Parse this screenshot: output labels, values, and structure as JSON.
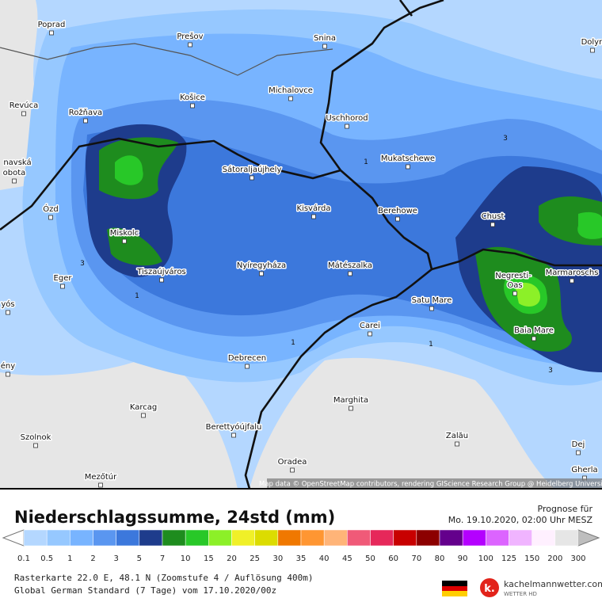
{
  "map": {
    "cities": [
      "Poprad",
      "Prešov",
      "Snina",
      "Dolyn",
      "Revúca",
      "Rožňava",
      "Košice",
      "Michalovce",
      "Uschhorod",
      "Mukatschewe",
      "navská",
      "obota",
      "Sátoraljaújhely",
      "Ózd",
      "Kisvárda",
      "Berehowe",
      "Chust",
      "Miskolc",
      "Tiszaújváros",
      "Nyíregyháza",
      "Mátészalka",
      "Eger",
      "Negresti-",
      "Oas",
      "Marmaroschs",
      "Satu Mare",
      "Carei",
      "Baia Mare",
      "yós",
      "Debrecen",
      "ény",
      "Marghita",
      "Karcag",
      "Berettyóújfalu",
      "Zalău",
      "Szolnok",
      "Dej",
      "Oradea",
      "Gherla",
      "Mezőtúr"
    ],
    "contour_labels": [
      "3",
      "1",
      "3",
      "1",
      "1",
      "1",
      "3"
    ],
    "attribution": "Map data © OpenStreetMap contributors, rendering GIScience Research Group @ Heidelberg University"
  },
  "legend": {
    "title": "Niederschlagssumme, 24std (mm)",
    "labels": [
      "0.1",
      "0.5",
      "1",
      "2",
      "3",
      "5",
      "7",
      "10",
      "15",
      "20",
      "25",
      "30",
      "35",
      "40",
      "45",
      "50",
      "60",
      "70",
      "80",
      "90",
      "100",
      "125",
      "150",
      "200",
      "300"
    ],
    "colors": [
      "#b4d7ff",
      "#96c8ff",
      "#78b4ff",
      "#5a96f0",
      "#3c78dc",
      "#1e3c8c",
      "#1e8c1e",
      "#28c828",
      "#8cf028",
      "#f0f028",
      "#dcdc00",
      "#f07800",
      "#ff9632",
      "#ffb478",
      "#f05a78",
      "#e6285a",
      "#c80000",
      "#8c0000",
      "#64008c",
      "#b400ff",
      "#dc64ff",
      "#f0b4ff",
      "#fff0ff",
      "#e6e6e6"
    ]
  },
  "forecast": {
    "label": "Prognose für",
    "time": "Mo. 19.10.2020, 02:00 Uhr MESZ"
  },
  "footer": {
    "grid": "Rasterkarte 22.0 E, 48.1 N (Zoomstufe 4 / Auflösung 400m)",
    "model": "Global German Standard (7 Tage) vom 17.10.2020/00z",
    "brand": "kachelmannwetter.com",
    "tagline": "WETTER HD"
  }
}
